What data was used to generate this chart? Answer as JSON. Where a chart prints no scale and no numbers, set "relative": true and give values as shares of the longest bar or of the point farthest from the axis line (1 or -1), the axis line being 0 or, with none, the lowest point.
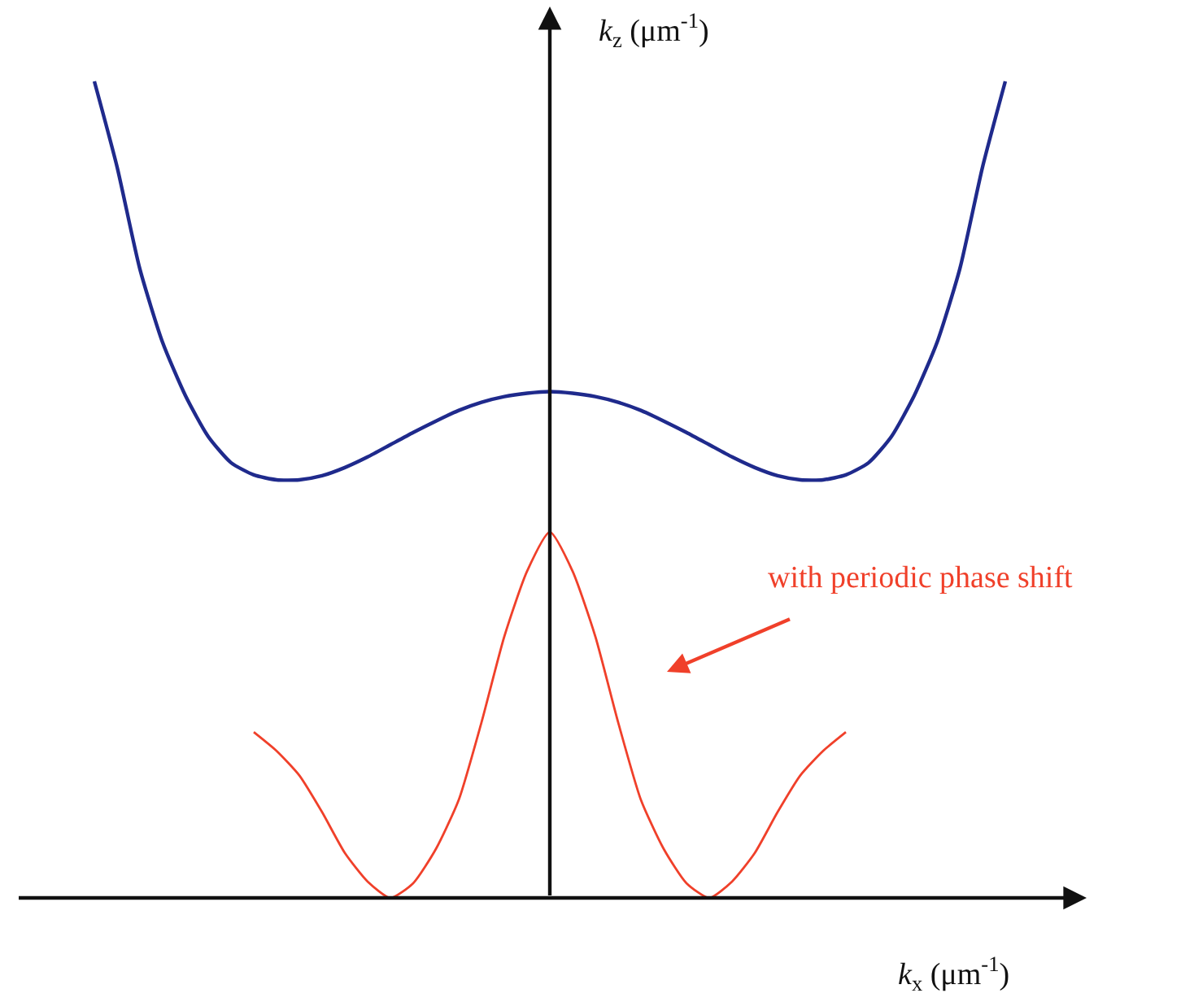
{
  "chart_data": {
    "type": "line",
    "relative": true,
    "xlabel": "k$_{x}$ (μm$^{-1}$)",
    "ylabel": "k$_{z}$ (μm$^{-1}$)",
    "annotations": [
      "with periodic phase shift"
    ],
    "categories": [
      null,
      null,
      null,
      null,
      null,
      null,
      null,
      null,
      null,
      null,
      null,
      null,
      null,
      null,
      null,
      null,
      null,
      null,
      null,
      null,
      null,
      null,
      null,
      null,
      null,
      null,
      null,
      null,
      null,
      null,
      null,
      null,
      null,
      null,
      null,
      null,
      null,
      null,
      null,
      null,
      null
    ],
    "series": [
      {
        "color": "#1f2a8c",
        "values": [
          1.0,
          0.895,
          0.77,
          0.68,
          0.615,
          0.565,
          0.533,
          0.518,
          0.512,
          0.512,
          0.517,
          0.527,
          0.54,
          0.555,
          0.57,
          0.584,
          0.597,
          0.607,
          0.614,
          0.618,
          0.62,
          0.618,
          0.614,
          0.607,
          0.597,
          0.584,
          0.57,
          0.555,
          0.54,
          0.527,
          0.517,
          0.512,
          0.512,
          0.518,
          0.533,
          0.565,
          0.615,
          0.68,
          0.77,
          0.895,
          1.0
        ]
      },
      {
        "color": "#f0402a",
        "values": [
          null,
          null,
          null,
          null,
          null,
          null,
          null,
          0.203,
          0.18,
          0.15,
          0.105,
          0.055,
          0.02,
          0.0,
          0.018,
          0.06,
          0.12,
          0.215,
          0.32,
          0.4,
          0.448,
          0.4,
          0.32,
          0.215,
          0.12,
          0.06,
          0.018,
          0.0,
          0.02,
          0.055,
          0.105,
          0.15,
          0.18,
          0.203,
          null,
          null,
          null,
          null,
          null,
          null,
          null
        ]
      }
    ]
  }
}
